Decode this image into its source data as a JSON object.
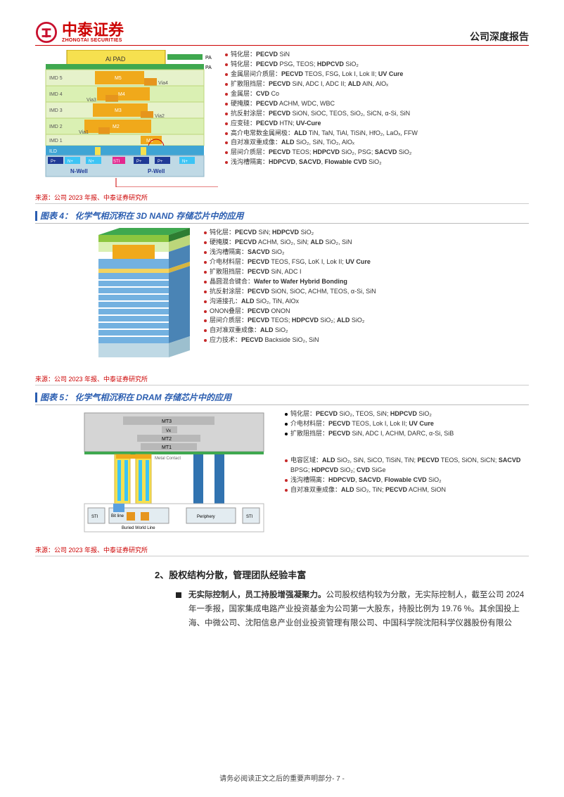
{
  "header": {
    "company_cn": "中泰证券",
    "company_en": "ZHONGTAI SECURITIES",
    "doc_type": "公司深度报告",
    "logo_color": "#c8102e"
  },
  "figure3": {
    "source": "来源：公司 2023 年报、中泰证券研究所",
    "cross_section": {
      "top_label": "Al PAD",
      "side_labels_right": [
        "PA",
        "PA"
      ],
      "imd_layers": [
        "IMD 5",
        "IMD 4",
        "IMD 3",
        "IMD 2",
        "IMD 1",
        "ILD"
      ],
      "metal_labels": [
        "M5",
        "M4",
        "M3",
        "M2",
        "M1"
      ],
      "via_labels": [
        "Via4",
        "Via3",
        "Via2",
        "Via1"
      ],
      "sti_label": "STI",
      "wells": [
        "P+",
        "N-Well",
        "N+",
        "N+",
        "P-Well",
        "P+",
        "N+"
      ],
      "colors": {
        "oxide": "#daf0b3",
        "metal": "#f0a91b",
        "pa": "#3fa84f",
        "via": "#e6951d",
        "ild": "#3fa4d4",
        "contact": "#f6e04f",
        "nwell": "#2d5fcc",
        "pwell": "#2d5fcc",
        "p_plus": "#1f3a96",
        "n_plus": "#3cc4f5",
        "sti": "#e3288f",
        "si": "#bfd9e5"
      }
    },
    "layers": [
      {
        "cn": "钝化层",
        "en": "PECVD SiN"
      },
      {
        "cn": "钝化层",
        "en": "PECVD PSG, TEOS; HDPCVD SiO₂"
      },
      {
        "cn": "金属层间介质层",
        "en": "PECVD TEOS, FSG, Lok I, Lok II; UV Cure"
      },
      {
        "cn": "扩散阻挡层",
        "en": "PECVD SiN, ADC I, ADC II; ALD AlN, AlOₓ"
      },
      {
        "cn": "金属层",
        "en": "CVD Co"
      },
      {
        "cn": "硬掩膜",
        "en": "PECVD ACHM, WDC, WBC"
      },
      {
        "cn": "抗反射涂层",
        "en": "PECVD SiON, SiOC, TEOS, SiO₂, SiCN, α-Si, SiN"
      },
      {
        "cn": "应变硅",
        "en": "PECVD HTN; UV-Cure"
      },
      {
        "cn": "高介电常数金属闸极",
        "en": "ALD TiN, TaN, TiAl, TiSiN, HfO₂, LaOₓ, FFW"
      },
      {
        "cn": "自对准双重成像",
        "en": "ALD SiO₂, SiN, TiO₂, AlOₓ"
      },
      {
        "cn": "层间介质层",
        "en": "PECVD TEOS; HDPCVD SiO₂, PSG; SACVD SiO₂"
      },
      {
        "cn": "浅沟槽隔离",
        "en": "HDPCVD, SACVD, Flowable CVD SiO₂"
      }
    ]
  },
  "figure4": {
    "title": "图表 4： 化学气相沉积在 3D NAND 存储芯片中的应用",
    "source": "来源：公司 2023 年报、中泰证券研究所",
    "stack": {
      "colors": {
        "top": "#3fa84f",
        "cap": "#daf0b3",
        "metal": "#f0a91b",
        "layer": "#73b1e0",
        "alt": "#ffffff",
        "base": "#bfd9e5",
        "bond": "#f4d35e"
      }
    },
    "layers": [
      {
        "cn": "钝化层",
        "en": "PECVD SiN; HDPCVD SiO₂"
      },
      {
        "cn": "硬掩膜",
        "en": "PECVD ACHM, SiO₂, SiN; ALD SiO₂, SiN"
      },
      {
        "cn": "浅沟槽隔离",
        "en": "SACVD SiO₂"
      },
      {
        "cn": "介电材料层",
        "en": "PECVD TEOS, FSG, LoK I, Lok II; UV Cure"
      },
      {
        "cn": "扩散阻挡层",
        "en": "PECVD SiN, ADC I"
      },
      {
        "cn": "晶圆混合键合",
        "en": "Wafer to Wafer Hybrid Bonding"
      },
      {
        "cn": "抗反射涂层",
        "en": "PECVD SiON, SiOC, ACHM, TEOS, α-Si, SiN"
      },
      {
        "cn": "沟道接孔",
        "en": "ALD SiO₂, TiN, AlOx"
      },
      {
        "cn": "ONON叠层",
        "en": "PECVD ONON"
      },
      {
        "cn": "层间介质层",
        "en": "PECVD TEOS; HDPCVD SiO₂; ALD SiO₂"
      },
      {
        "cn": "自对准双重成像",
        "en": "ALD SiO₂"
      },
      {
        "cn": "应力技术",
        "en": "PECVD Backside SiO₂, SiN"
      }
    ]
  },
  "figure5": {
    "title": "图表 5： 化学气相沉积在 DRAM 存储芯片中的应用",
    "source": "来源：公司 2023 年报、中泰证券研究所",
    "cross_section": {
      "labels": [
        "MT3",
        "Vx",
        "MT2",
        "MT1",
        "Metal Contact",
        "Bit line",
        "Buried World Line",
        "Periphery",
        "STI",
        "STI"
      ],
      "colors": {
        "dielectric": "#d5d5d5",
        "cap_green": "#3fa84f",
        "cap_yellow": "#f6e04f",
        "cap_orange": "#f0a91b",
        "sti": "#e3ecf1",
        "via": "#3cc4f5",
        "bwl": "#e6951d",
        "plug": "#3173b0",
        "bitline": "#5aa0e0"
      }
    },
    "layers_top": [
      {
        "cn": "钝化层",
        "en": "PECVD SiO₂, TEOS, SiN; HDPCVD SiO₂"
      },
      {
        "cn": "介电材料层",
        "en": "PECVD TEOS, Lok I, Lok II; UV Cure"
      },
      {
        "cn": "扩散阻挡层",
        "en": "PECVD SiN, ADC I, ACHM, DARC, α-Si, SiB"
      }
    ],
    "layers_bottom": [
      {
        "cn": "电容区域",
        "en": "ALD SiO₂, SiN, SiCO, TiSiN, TiN; PECVD TEOS, SiON, SiCN; SACVD BPSG; HDPCVD SiO₂; CVD SiGe"
      },
      {
        "cn": "浅沟槽隔离",
        "en": "HDPCVD, SACVD, Flowable CVD SiO₂"
      },
      {
        "cn": "自对准双重成像",
        "en": "ALD SiO₂, TiN; PECVD ACHM, SiON"
      }
    ]
  },
  "section2": {
    "header": "2、股权结构分散，管理团队经验丰富",
    "para_lead": "无实际控制人，员工持股增强凝聚力。",
    "para_body": "公司股权结构较为分散，无实际控制人，截至公司 2024 年一季报，国家集成电路产业投资基金为公司第一大股东，持股比例为 19.76 %。其余国投上海、中微公司、沈阳信息产业创业投资管理有限公司、中国科学院沈阳科学仪器股份有限公"
  },
  "footer": {
    "text": "请务必阅读正文之后的重要声明部分",
    "page": "- 7 -"
  },
  "styling": {
    "accent_red": "#c8102e",
    "accent_blue": "#2a5db0",
    "body_font_size_pt": 11.5,
    "title_font_size_pt": 12
  }
}
